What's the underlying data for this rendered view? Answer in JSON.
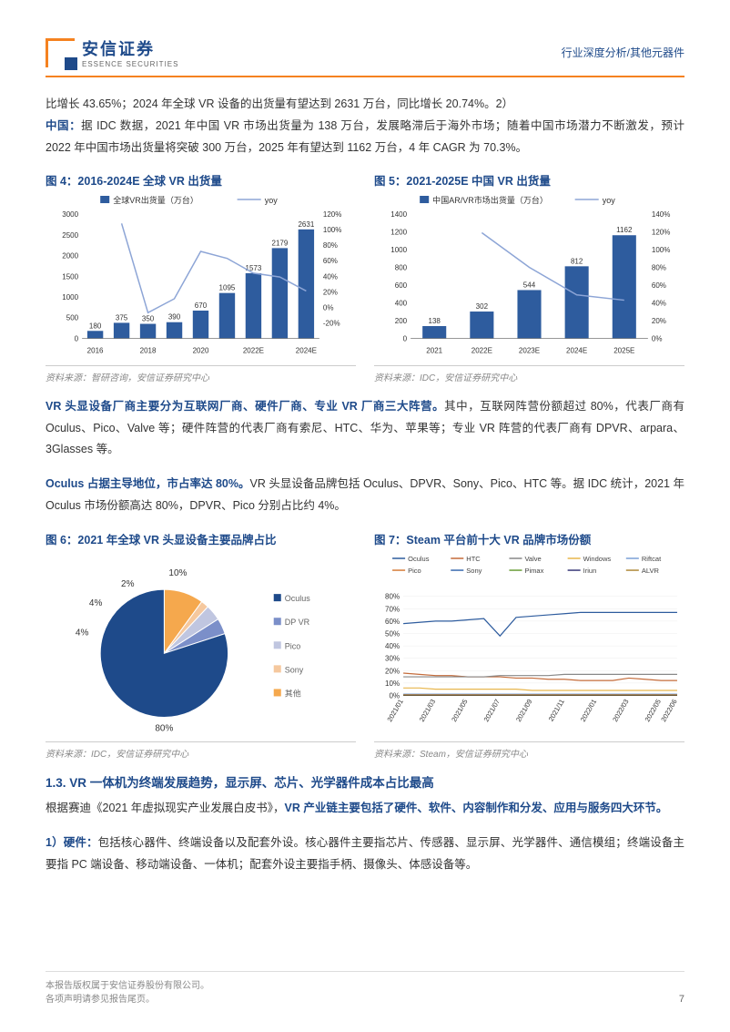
{
  "header": {
    "logo_cn": "安信证券",
    "logo_en": "ESSENCE SECURITIES",
    "category": "行业深度分析/其他元器件"
  },
  "para1": "比增长 43.65%；2024 年全球 VR 设备的出货量有望达到 2631 万台，同比增长 20.74%。2）",
  "para1b_bold": "中国：",
  "para1b": "据 IDC 数据，2021 年中国 VR 市场出货量为 138 万台，发展略滞后于海外市场；随着中国市场潜力不断激发，预计 2022 年中国市场出货量将突破 300 万台，2025 年有望达到 1162 万台，4 年 CAGR 为 70.3%。",
  "chart4": {
    "title": "图 4：2016-2024E 全球 VR 出货量",
    "type": "bar_line",
    "legend_bar": "全球VR出货量（万台）",
    "legend_line": "yoy",
    "categories": [
      "2016",
      "",
      "2018",
      "",
      "2020",
      "",
      "2022E",
      "",
      "2024E"
    ],
    "all_cats": [
      "2016",
      "2017",
      "2018",
      "2019",
      "2020",
      "2021",
      "2022E",
      "2023E",
      "2024E"
    ],
    "values": [
      180,
      375,
      350,
      390,
      670,
      1095,
      1573,
      2179,
      2631
    ],
    "yoy": [
      null,
      108,
      -7,
      11,
      72,
      63,
      44,
      39,
      21
    ],
    "ylim_left": [
      0,
      3000
    ],
    "ytick_left": [
      0,
      500,
      1000,
      1500,
      2000,
      2500,
      3000
    ],
    "ylim_right": [
      -40,
      120
    ],
    "ytick_right": [
      "-20%",
      "0%",
      "20%",
      "40%",
      "60%",
      "80%",
      "100%",
      "120%"
    ],
    "bar_color": "#2e5c9e",
    "line_color": "#8da5d6",
    "source": "资料来源：智研咨询，安信证券研究中心"
  },
  "chart5": {
    "title": "图 5：2021-2025E 中国 VR 出货量",
    "type": "bar_line",
    "legend_bar": "中国AR/VR市场出货量（万台）",
    "legend_line": "yoy",
    "categories": [
      "2021",
      "2022E",
      "2023E",
      "2024E",
      "2025E"
    ],
    "values": [
      138,
      302,
      544,
      812,
      1162
    ],
    "yoy": [
      null,
      119,
      80,
      49,
      43
    ],
    "ylim_left": [
      0,
      1400
    ],
    "ytick_left": [
      0,
      200,
      400,
      600,
      800,
      1000,
      1200,
      1400
    ],
    "ylim_right": [
      0,
      140
    ],
    "ytick_right": [
      "0%",
      "20%",
      "40%",
      "60%",
      "80%",
      "100%",
      "120%",
      "140%"
    ],
    "bar_color": "#2e5c9e",
    "line_color": "#8da5d6",
    "source": "资料来源：IDC，安信证券研究中心"
  },
  "para2_bold": "VR 头显设备厂商主要分为互联网厂商、硬件厂商、专业 VR 厂商三大阵营。",
  "para2": "其中，互联网阵营份额超过 80%，代表厂商有 Oculus、Pico、Valve 等；硬件阵营的代表厂商有索尼、HTC、华为、苹果等；专业 VR 阵营的代表厂商有 DPVR、arpara、3Glasses 等。",
  "para3_bold": "Oculus 占据主导地位，市占率达 80%。",
  "para3": "VR 头显设备品牌包括 Oculus、DPVR、Sony、Pico、HTC 等。据 IDC 统计，2021 年 Oculus 市场份额高达 80%，DPVR、Pico 分别占比约 4%。",
  "chart6": {
    "title": "图 6：2021 年全球 VR 头显设备主要品牌占比",
    "type": "pie",
    "slices": [
      {
        "label": "Oculus",
        "value": 80,
        "color": "#1e4a8a"
      },
      {
        "label": "DP VR",
        "value": 4,
        "color": "#7b8fc9"
      },
      {
        "label": "Pico",
        "value": 4,
        "color": "#c0c6e0"
      },
      {
        "label": "Sony",
        "value": 2,
        "color": "#f5c89e"
      },
      {
        "label": "其他",
        "value": 10,
        "color": "#f5a84d"
      }
    ],
    "labels_shown": [
      "80%",
      "4%",
      "4%",
      "2%",
      "10%"
    ],
    "source": "资料来源：IDC，安信证券研究中心"
  },
  "chart7": {
    "title": "图 7：Steam 平台前十大 VR 品牌市场份额",
    "type": "line",
    "legend": [
      {
        "label": "Oculus",
        "color": "#2e5c9e"
      },
      {
        "label": "HTC",
        "color": "#c46b3a"
      },
      {
        "label": "Valve",
        "color": "#888888"
      },
      {
        "label": "Windows",
        "color": "#e8b64d"
      },
      {
        "label": "Riftcat",
        "color": "#7ba0d6"
      },
      {
        "label": "Pico",
        "color": "#d67d3a"
      },
      {
        "label": "Sony",
        "color": "#3a6bb0"
      },
      {
        "label": "Pimax",
        "color": "#6b9e3a"
      },
      {
        "label": "Iriun",
        "color": "#3a3a7a"
      },
      {
        "label": "ALVR",
        "color": "#b08a3a"
      }
    ],
    "x_categories": [
      "2021/01",
      "2021/02",
      "2021/03",
      "2021/04",
      "2021/05",
      "2021/06",
      "2021/07",
      "2021/08",
      "2021/09",
      "2021/10",
      "2021/11",
      "2021/12",
      "2022/01",
      "2022/02",
      "2022/03",
      "2022/04",
      "2022/05",
      "2022/06"
    ],
    "x_labels_shown": [
      "2021/01",
      "2021/03",
      "2021/05",
      "2021/07",
      "2021/09",
      "2021/11",
      "2022/01",
      "2022/03",
      "2022/05",
      "2022/06"
    ],
    "series": {
      "Oculus": [
        58,
        59,
        60,
        60,
        61,
        62,
        48,
        63,
        64,
        65,
        66,
        67,
        67,
        67,
        67,
        67,
        67,
        67
      ],
      "HTC": [
        18,
        17,
        16,
        16,
        15,
        15,
        15,
        14,
        14,
        13,
        13,
        12,
        12,
        12,
        14,
        13,
        12,
        12
      ],
      "Valve": [
        15,
        15,
        15,
        15,
        15,
        15,
        16,
        16,
        16,
        16,
        17,
        17,
        17,
        17,
        17,
        17,
        17,
        17
      ],
      "Windows": [
        6,
        6,
        5,
        5,
        5,
        5,
        5,
        5,
        4,
        4,
        4,
        4,
        4,
        4,
        4,
        4,
        4,
        4
      ],
      "Riftcat": [
        1,
        1,
        1,
        1,
        1,
        1,
        1,
        1,
        1,
        1,
        1,
        1,
        1,
        1,
        1,
        1,
        1,
        1
      ],
      "Pico": [
        0.5,
        0.5,
        0.5,
        0.5,
        0.5,
        0.5,
        0.5,
        0.5,
        0.5,
        0.5,
        0.5,
        0.5,
        0.5,
        0.5,
        0.5,
        0.5,
        0.5,
        0.5
      ],
      "Sony": [
        0.3,
        0.3,
        0.3,
        0.3,
        0.3,
        0.3,
        0.3,
        0.3,
        0.3,
        0.3,
        0.3,
        0.3,
        0.3,
        0.3,
        0.3,
        0.3,
        0.3,
        0.3
      ],
      "Pimax": [
        0.2,
        0.2,
        0.2,
        0.2,
        0.2,
        0.2,
        0.2,
        0.2,
        0.2,
        0.2,
        0.2,
        0.2,
        0.2,
        0.2,
        0.2,
        0.2,
        0.2,
        0.2
      ],
      "Iriun": [
        0.1,
        0.1,
        0.1,
        0.1,
        0.1,
        0.1,
        0.1,
        0.1,
        0.1,
        0.1,
        0.1,
        0.1,
        0.1,
        0.1,
        0.1,
        0.1,
        0.1,
        0.1
      ],
      "ALVR": [
        0.1,
        0.1,
        0.1,
        0.1,
        0.1,
        0.1,
        0.1,
        0.1,
        0.1,
        0.1,
        0.1,
        0.1,
        0.1,
        0.1,
        0.1,
        0.1,
        0.1,
        0.1
      ]
    },
    "ylim": [
      0,
      90
    ],
    "ytick": [
      "0%",
      "10%",
      "20%",
      "30%",
      "40%",
      "50%",
      "60%",
      "70%",
      "80%"
    ],
    "source": "资料来源：Steam，安信证券研究中心"
  },
  "section": {
    "title": "1.3. VR 一体机为终端发展趋势，显示屏、芯片、光学器件成本占比最高",
    "p1_pre": "根据赛迪《2021 年虚拟现实产业发展白皮书》，",
    "p1_bold": "VR 产业链主要包括了硬件、软件、内容制作和分发、应用与服务四大环节。",
    "p2_bold": "1）硬件：",
    "p2": "包括核心器件、终端设备以及配套外设。核心器件主要指芯片、传感器、显示屏、光学器件、通信模组；终端设备主要指 PC 端设备、移动端设备、一体机；配套外设主要指手柄、摄像头、体感设备等。"
  },
  "footer": {
    "line1": "本报告版权属于安信证券股份有限公司。",
    "line2": "各项声明请参见报告尾页。",
    "page": "7"
  }
}
